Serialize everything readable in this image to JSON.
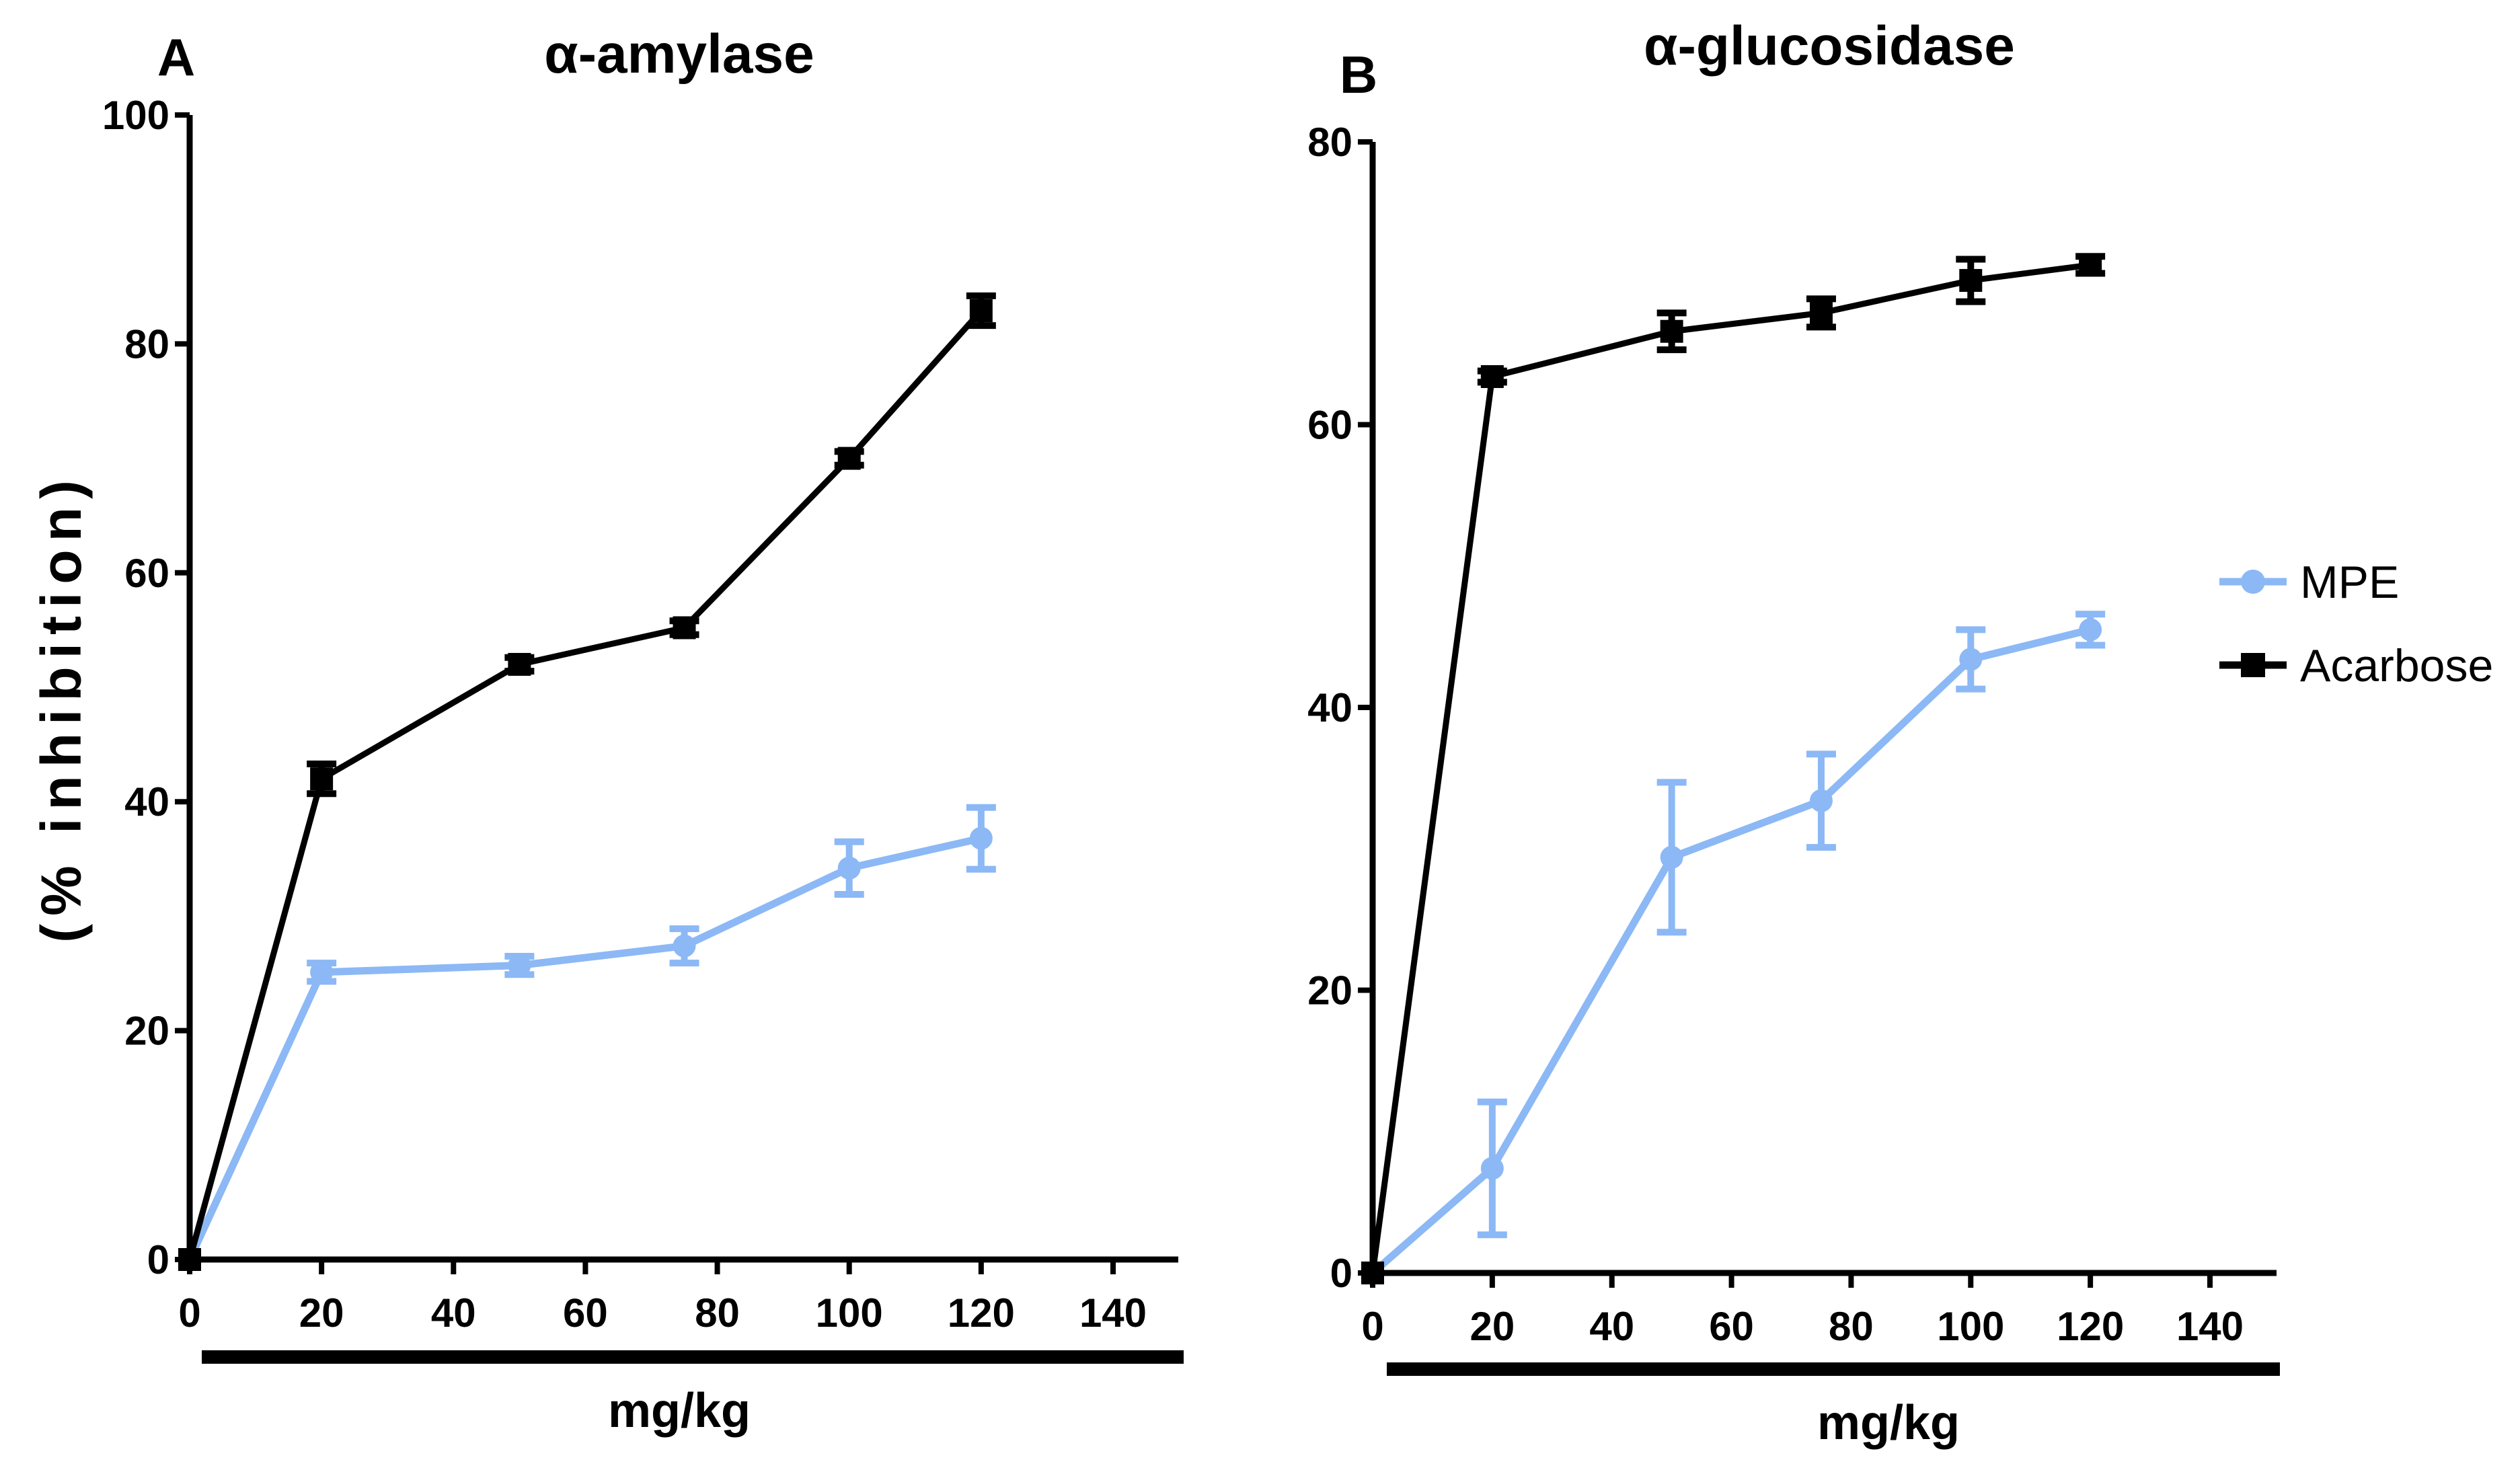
{
  "chart_data": [
    {
      "type": "line",
      "panel": "A",
      "title": "α-amylase",
      "xlabel": "mg/kg",
      "ylabel": "(% inhibition)",
      "xlim": [
        0,
        150
      ],
      "ylim": [
        0,
        100
      ],
      "xticks": [
        0,
        20,
        40,
        60,
        80,
        100,
        120,
        140
      ],
      "yticks": [
        0,
        20,
        40,
        60,
        80,
        100
      ],
      "x": [
        0,
        20,
        50,
        75,
        100,
        120
      ],
      "series": [
        {
          "name": "MPE",
          "marker": "circle",
          "color": "#8cb8f5",
          "values": [
            0,
            25.1,
            25.7,
            27.4,
            34.2,
            36.8
          ],
          "errors": [
            0,
            0.8,
            0.8,
            1.5,
            2.3,
            2.7
          ]
        },
        {
          "name": "Acarbose",
          "marker": "square",
          "color": "#000000",
          "values": [
            0,
            42.0,
            52.0,
            55.2,
            70.0,
            82.9
          ],
          "errors": [
            0,
            1.3,
            0.6,
            0.6,
            0.6,
            1.3
          ]
        }
      ]
    },
    {
      "type": "line",
      "panel": "B",
      "title": "α-glucosidase",
      "xlabel": "mg/kg",
      "ylabel": "",
      "xlim": [
        0,
        150
      ],
      "ylim": [
        0,
        80
      ],
      "xticks": [
        0,
        20,
        40,
        60,
        80,
        100,
        120,
        140
      ],
      "yticks": [
        0,
        20,
        40,
        60,
        80
      ],
      "x": [
        0,
        20,
        50,
        75,
        100,
        120
      ],
      "series": [
        {
          "name": "MPE",
          "marker": "circle",
          "color": "#8cb8f5",
          "values": [
            0,
            7.4,
            29.4,
            33.4,
            43.4,
            45.5
          ],
          "errors": [
            0,
            4.7,
            5.3,
            3.3,
            2.1,
            1.1
          ]
        },
        {
          "name": "Acarbose",
          "marker": "square",
          "color": "#000000",
          "values": [
            0,
            63.4,
            66.6,
            67.9,
            70.2,
            71.3
          ],
          "errors": [
            0,
            0.4,
            1.3,
            1.0,
            1.5,
            0.6
          ]
        }
      ]
    }
  ],
  "legend": [
    {
      "name": "MPE",
      "marker": "circle",
      "color": "#8cb8f5"
    },
    {
      "name": "Acarbose",
      "marker": "square",
      "color": "#000000"
    }
  ]
}
